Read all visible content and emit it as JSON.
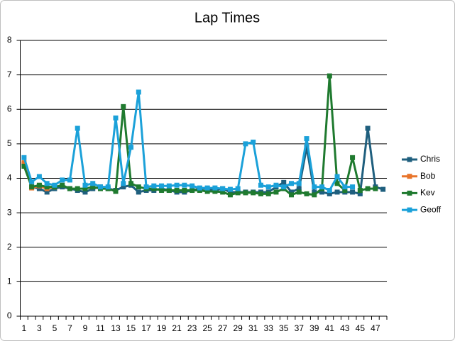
{
  "chart_data": {
    "type": "line",
    "title": "Lap Times",
    "categories": [
      1,
      null,
      3,
      null,
      5,
      null,
      7,
      null,
      9,
      null,
      11,
      null,
      13,
      null,
      15,
      null,
      17,
      null,
      19,
      null,
      21,
      null,
      23,
      null,
      25,
      null,
      27,
      null,
      29,
      null,
      31,
      null,
      33,
      null,
      35,
      null,
      37,
      null,
      39,
      null,
      41,
      null,
      43,
      null,
      45,
      null,
      47,
      null
    ],
    "ylim": [
      0,
      8
    ],
    "yticks": [
      0,
      1,
      2,
      3,
      4,
      5,
      6,
      7,
      8
    ],
    "grid": true,
    "legend": "right",
    "series": [
      {
        "name": "Chris",
        "color": "#1f5f7e",
        "values": [
          4.4,
          3.75,
          3.7,
          3.6,
          3.7,
          3.75,
          3.7,
          3.65,
          3.6,
          3.7,
          3.75,
          3.7,
          3.65,
          3.75,
          3.8,
          3.6,
          3.65,
          3.65,
          3.7,
          3.65,
          3.6,
          3.6,
          3.65,
          3.7,
          3.7,
          3.65,
          3.7,
          3.6,
          3.6,
          3.6,
          3.6,
          3.6,
          3.6,
          3.75,
          3.88,
          3.6,
          3.7,
          4.9,
          3.6,
          3.6,
          3.55,
          3.6,
          3.6,
          3.6,
          3.55,
          5.45,
          3.75,
          3.68
        ]
      },
      {
        "name": "Bob",
        "color": "#e8742a",
        "values": [
          4.45,
          3.72,
          3.78,
          3.7,
          3.75,
          null,
          null,
          null,
          null,
          null,
          null,
          null,
          null,
          null,
          null,
          null,
          null,
          null,
          null,
          null,
          null,
          null,
          null,
          null,
          null,
          null,
          null,
          null,
          null,
          null,
          null,
          null,
          null,
          null,
          null,
          null,
          null,
          null,
          null,
          null,
          null,
          null,
          null,
          null,
          null,
          null,
          null,
          null
        ]
      },
      {
        "name": "Kev",
        "color": "#1f7a2f",
        "values": [
          4.35,
          3.75,
          3.8,
          3.75,
          3.75,
          3.8,
          3.7,
          3.7,
          3.7,
          3.75,
          3.7,
          3.7,
          3.62,
          6.08,
          3.85,
          3.75,
          3.7,
          3.7,
          3.65,
          3.65,
          3.65,
          3.65,
          3.65,
          3.65,
          3.62,
          3.62,
          3.6,
          3.52,
          3.58,
          3.58,
          3.58,
          3.55,
          3.55,
          3.6,
          3.7,
          3.52,
          3.6,
          3.55,
          3.52,
          3.7,
          6.97,
          3.85,
          3.65,
          4.6,
          3.65,
          3.7,
          3.7,
          null
        ]
      },
      {
        "name": "Geoff",
        "color": "#1ba1d9",
        "values": [
          4.6,
          3.9,
          4.05,
          3.85,
          3.8,
          3.95,
          3.95,
          5.45,
          3.8,
          3.85,
          3.75,
          3.75,
          5.75,
          3.85,
          4.9,
          6.5,
          3.75,
          3.78,
          3.78,
          3.78,
          3.8,
          3.8,
          3.78,
          3.72,
          3.72,
          3.72,
          3.7,
          3.68,
          3.7,
          5.0,
          5.05,
          3.8,
          3.75,
          3.8,
          3.75,
          3.85,
          3.85,
          5.15,
          3.75,
          3.75,
          3.65,
          4.05,
          3.75,
          3.75,
          null,
          null,
          null,
          null
        ]
      }
    ]
  }
}
